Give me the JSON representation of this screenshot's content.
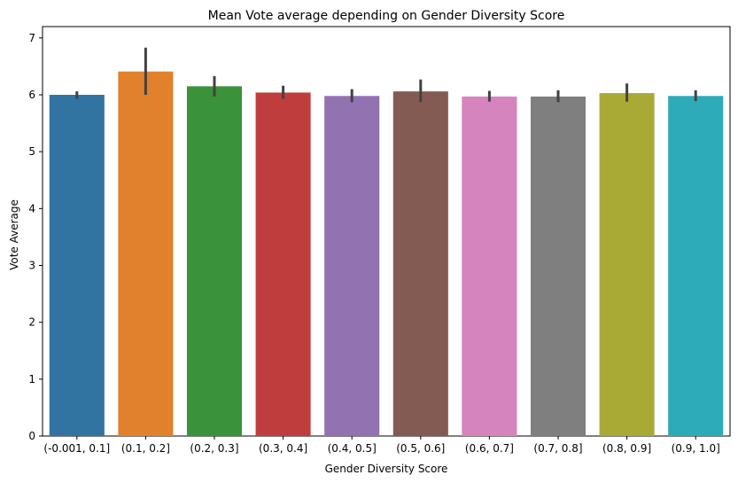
{
  "chart_data": {
    "type": "bar",
    "title": "Mean Vote average depending on Gender Diversity Score",
    "xlabel": "Gender Diversity Score",
    "ylabel": "Vote Average",
    "ylim": [
      0,
      7.2
    ],
    "yticks": [
      "0",
      "1",
      "2",
      "3",
      "4",
      "5",
      "6",
      "7"
    ],
    "grid": false,
    "categories": [
      "(-0.001, 0.1]",
      "(0.1, 0.2]",
      "(0.2, 0.3]",
      "(0.3, 0.4]",
      "(0.4, 0.5]",
      "(0.5, 0.6]",
      "(0.6, 0.7]",
      "(0.7, 0.8]",
      "(0.8, 0.9]",
      "(0.9, 1.0]"
    ],
    "values": [
      6.0,
      6.41,
      6.15,
      6.04,
      5.98,
      6.06,
      5.97,
      5.97,
      6.03,
      5.98
    ],
    "error_low": [
      5.93,
      6.0,
      5.97,
      5.93,
      5.87,
      5.87,
      5.88,
      5.87,
      5.88,
      5.89
    ],
    "error_high": [
      6.06,
      6.83,
      6.33,
      6.16,
      6.1,
      6.27,
      6.07,
      6.08,
      6.2,
      6.08
    ],
    "colors": [
      "#3274a1",
      "#e1812c",
      "#3a923a",
      "#c03d3e",
      "#9372b2",
      "#845b53",
      "#d684bd",
      "#7f7f7f",
      "#a9aa35",
      "#2eabb8"
    ],
    "error_color": "#424242"
  }
}
